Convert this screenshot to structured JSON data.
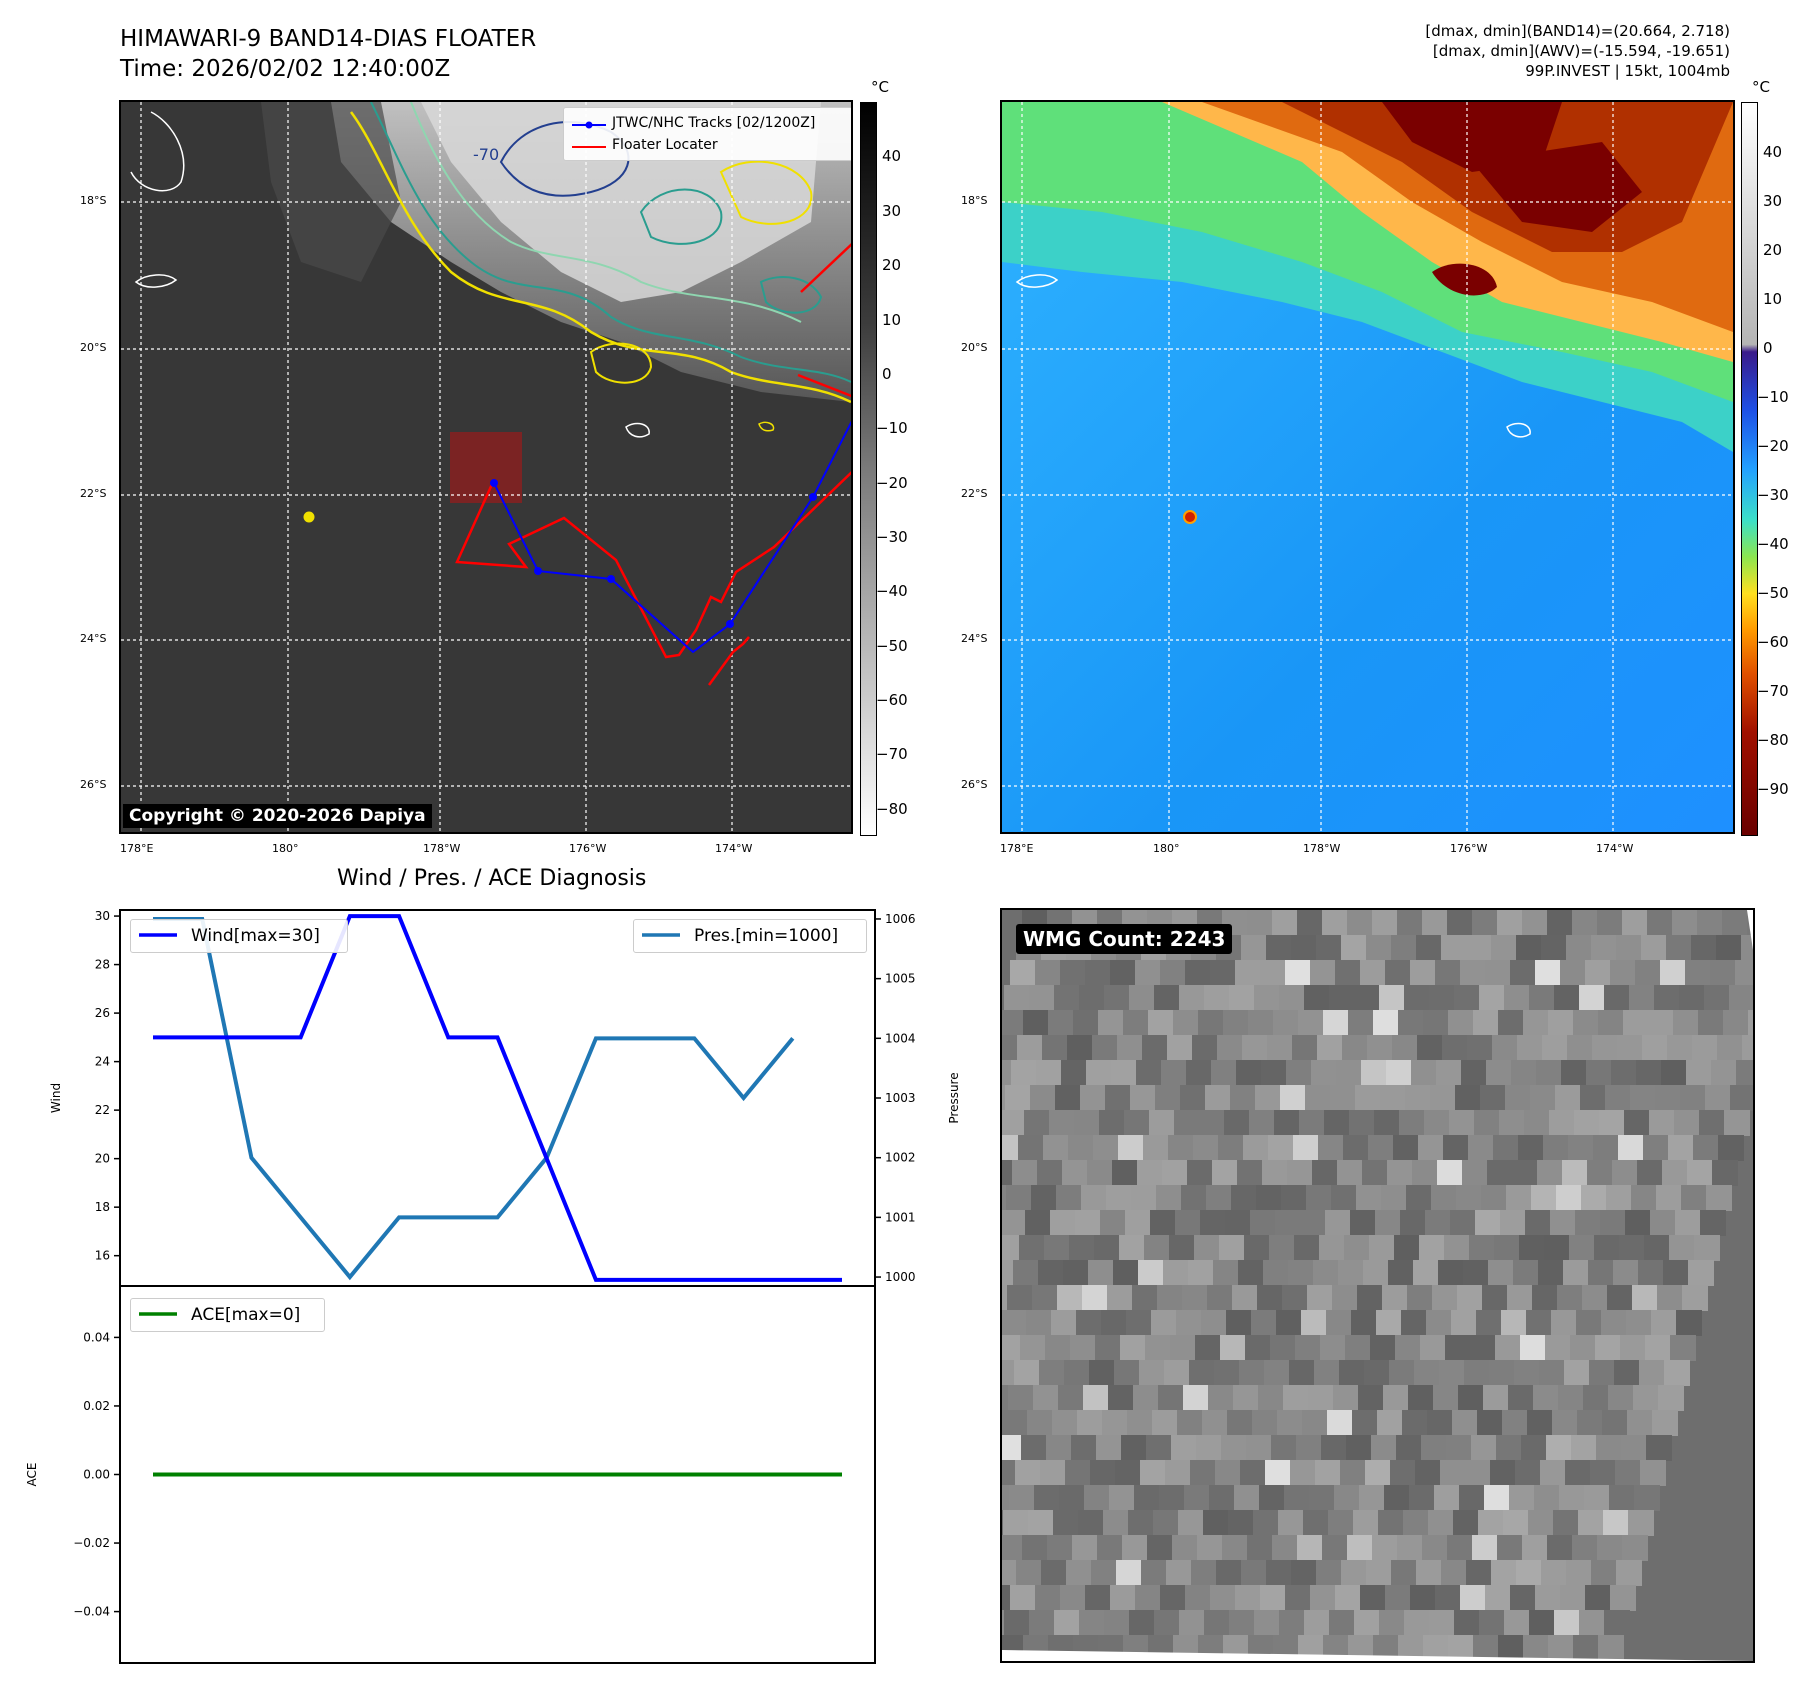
{
  "header": {
    "title_line1": "HIMAWARI-9 BAND14-DIAS FLOATER",
    "title_line2": "Time: 2026/02/02 12:40:00Z",
    "info_line1": "[dmax, dmin](BAND14)=(20.664, 2.718)",
    "info_line2": "[dmax, dmin](AWV)=(-15.594, -19.651)",
    "info_line3": "99P.INVEST | 15kt, 1004mb"
  },
  "map": {
    "lat_labels": [
      "18°S",
      "20°S",
      "22°S",
      "24°S",
      "26°S"
    ],
    "lon_labels": [
      "178°E",
      "180°",
      "178°W",
      "176°W",
      "174°W"
    ],
    "contour_label": "-70",
    "copyright": "Copyright © 2020-2026 Dapiya",
    "legend": {
      "track": "JTWC/NHC Tracks [02/1200Z]",
      "locater": "Floater Locater"
    },
    "track_color": "#0000ff",
    "locater_color": "#ff0000"
  },
  "colorbar_gray": {
    "unit": "°C",
    "ticks": [
      "40",
      "30",
      "20",
      "10",
      "0",
      "−10",
      "−20",
      "−30",
      "−40",
      "−50",
      "−60",
      "−70",
      "−80"
    ]
  },
  "colorbar_color": {
    "unit": "°C",
    "ticks": [
      "40",
      "30",
      "20",
      "10",
      "0",
      "−10",
      "−20",
      "−30",
      "−40",
      "−50",
      "−60",
      "−70",
      "−80",
      "−90"
    ]
  },
  "diagnosis": {
    "title": "Wind / Pres. / ACE Diagnosis"
  },
  "wmg": {
    "label": "WMG Count: 2243"
  },
  "chart_data": [
    {
      "type": "line",
      "title": "Wind / Pres. / ACE Diagnosis",
      "ylabel": "Wind",
      "y2label": "Pressure",
      "ylim": [
        14.75,
        30.25
      ],
      "y_ticks": [
        16,
        18,
        20,
        22,
        24,
        26,
        28,
        30
      ],
      "y2lim": [
        999.85,
        1006.15
      ],
      "y2_ticks": [
        1000,
        1001,
        1002,
        1003,
        1004,
        1005,
        1006
      ],
      "x": [
        0,
        1,
        2,
        3,
        4,
        5,
        6,
        7,
        8,
        9,
        10,
        11,
        12,
        13,
        14
      ],
      "series": [
        {
          "name": "Wind[max=30]",
          "axis": "left",
          "color": "#0000ff",
          "values": [
            25,
            25,
            25,
            25,
            30,
            30,
            25,
            25,
            20,
            15,
            15,
            15,
            15,
            15,
            15
          ]
        },
        {
          "name": "Pres.[min=1000]",
          "axis": "right",
          "color": "#1f77b4",
          "values": [
            1006,
            1006,
            1002,
            1001,
            1000,
            1001,
            1001,
            1001,
            1002,
            1004,
            1004,
            1004,
            1003,
            1004,
            null
          ]
        }
      ]
    },
    {
      "type": "line",
      "ylabel": "ACE",
      "ylim": [
        -0.055,
        0.055
      ],
      "y_ticks": [
        0.04,
        0.02,
        0.0,
        -0.02,
        -0.04
      ],
      "y_tick_labels": [
        "0.04",
        "0.02",
        "0.00",
        "−0.02",
        "−0.04"
      ],
      "x": [
        0,
        14
      ],
      "series": [
        {
          "name": "ACE[max=0]",
          "color": "#008000",
          "values": [
            0,
            0
          ]
        }
      ]
    }
  ]
}
